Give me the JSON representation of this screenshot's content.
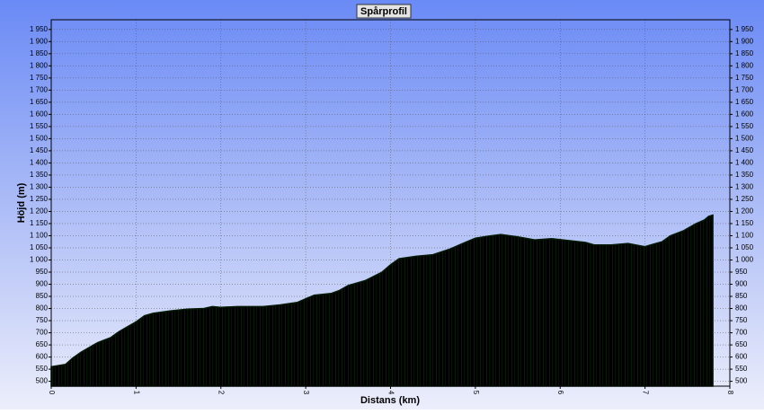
{
  "chart_data": {
    "type": "area",
    "title": "Spårprofil",
    "ylabel": "Höjd (m)",
    "xlabel": "Distans (km)",
    "x": [
      0,
      0.17,
      0.25,
      0.35,
      0.45,
      0.55,
      0.7,
      0.8,
      0.9,
      1.0,
      1.1,
      1.2,
      1.4,
      1.6,
      1.8,
      1.9,
      2.0,
      2.2,
      2.5,
      2.7,
      2.9,
      3.0,
      3.1,
      3.3,
      3.4,
      3.5,
      3.7,
      3.9,
      4.0,
      4.1,
      4.3,
      4.5,
      4.7,
      4.9,
      5.0,
      5.15,
      5.3,
      5.5,
      5.7,
      5.9,
      6.1,
      6.3,
      6.4,
      6.6,
      6.8,
      6.95,
      7.0,
      7.1,
      7.2,
      7.3,
      7.45,
      7.6,
      7.7,
      7.75,
      7.8
    ],
    "values": [
      560,
      570,
      595,
      620,
      640,
      660,
      680,
      705,
      725,
      745,
      770,
      780,
      790,
      797,
      800,
      808,
      805,
      808,
      808,
      815,
      825,
      840,
      855,
      862,
      875,
      895,
      915,
      950,
      980,
      1005,
      1015,
      1022,
      1045,
      1075,
      1090,
      1098,
      1105,
      1095,
      1083,
      1088,
      1080,
      1072,
      1062,
      1062,
      1068,
      1058,
      1055,
      1065,
      1075,
      1100,
      1120,
      1150,
      1165,
      1180,
      1185
    ],
    "color": "#0b7a0b",
    "xlim": [
      0,
      8
    ],
    "xticks": [
      0,
      1,
      2,
      3,
      4,
      5,
      6,
      7,
      8
    ],
    "ylim": [
      480,
      1990
    ],
    "yticks": [
      500,
      550,
      600,
      650,
      700,
      750,
      800,
      850,
      900,
      950,
      {
        "value": 1000,
        "label": "1 000"
      },
      {
        "value": 1050,
        "label": "1 050"
      },
      {
        "value": 1100,
        "label": "1 100"
      },
      {
        "value": 1150,
        "label": "1 150"
      },
      {
        "value": 1200,
        "label": "1 200"
      },
      {
        "value": 1250,
        "label": "1 250"
      },
      {
        "value": 1300,
        "label": "1 300"
      },
      {
        "value": 1350,
        "label": "1 350"
      },
      {
        "value": 1400,
        "label": "1 400"
      },
      {
        "value": 1450,
        "label": "1 450"
      },
      {
        "value": 1500,
        "label": "1 500"
      },
      {
        "value": 1550,
        "label": "1 550"
      },
      {
        "value": 1600,
        "label": "1 600"
      },
      {
        "value": 1650,
        "label": "1 650"
      },
      {
        "value": 1700,
        "label": "1 700"
      },
      {
        "value": 1750,
        "label": "1 750"
      },
      {
        "value": 1800,
        "label": "1 800"
      },
      {
        "value": 1850,
        "label": "1 850"
      },
      {
        "value": 1900,
        "label": "1 900"
      },
      {
        "value": 1950,
        "label": "1 950"
      }
    ],
    "grid": true
  }
}
